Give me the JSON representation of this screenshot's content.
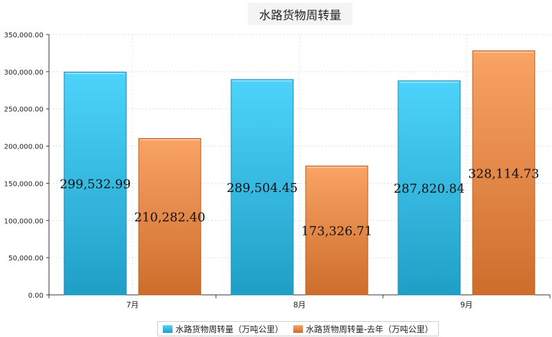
{
  "chart_data": {
    "type": "bar",
    "title": "水路货物周转量",
    "categories": [
      "7月",
      "8月",
      "9月"
    ],
    "series": [
      {
        "name": "水路货物周转量（万吨公里）",
        "values": [
          299532.99,
          289504.45,
          287820.84
        ],
        "value_labels": [
          "299,532.99",
          "289,504.45",
          "287,820.84"
        ]
      },
      {
        "name": "水路货物周转量-去年（万吨公里）",
        "values": [
          210282.4,
          173326.71,
          328114.73
        ],
        "value_labels": [
          "210,282.40",
          "173,326.71",
          "328,114.73"
        ]
      }
    ],
    "ylim": [
      0,
      350000
    ],
    "yticks": [
      0,
      50000,
      100000,
      150000,
      200000,
      250000,
      300000,
      350000
    ],
    "ytick_labels": [
      "0.00",
      "50,000.00",
      "100,000.00",
      "150,000.00",
      "200,000.00",
      "250,000.00",
      "300,000.00",
      "350,000.00"
    ],
    "grid": true,
    "legend_position": "bottom",
    "colors": {
      "series1_light": "#4dd3fb",
      "series1_dark": "#1f9fc6",
      "series1_edge": "#178ab0",
      "series2_light": "#f9a364",
      "series2_dark": "#cd6d2c",
      "series2_edge": "#b75c20"
    }
  }
}
